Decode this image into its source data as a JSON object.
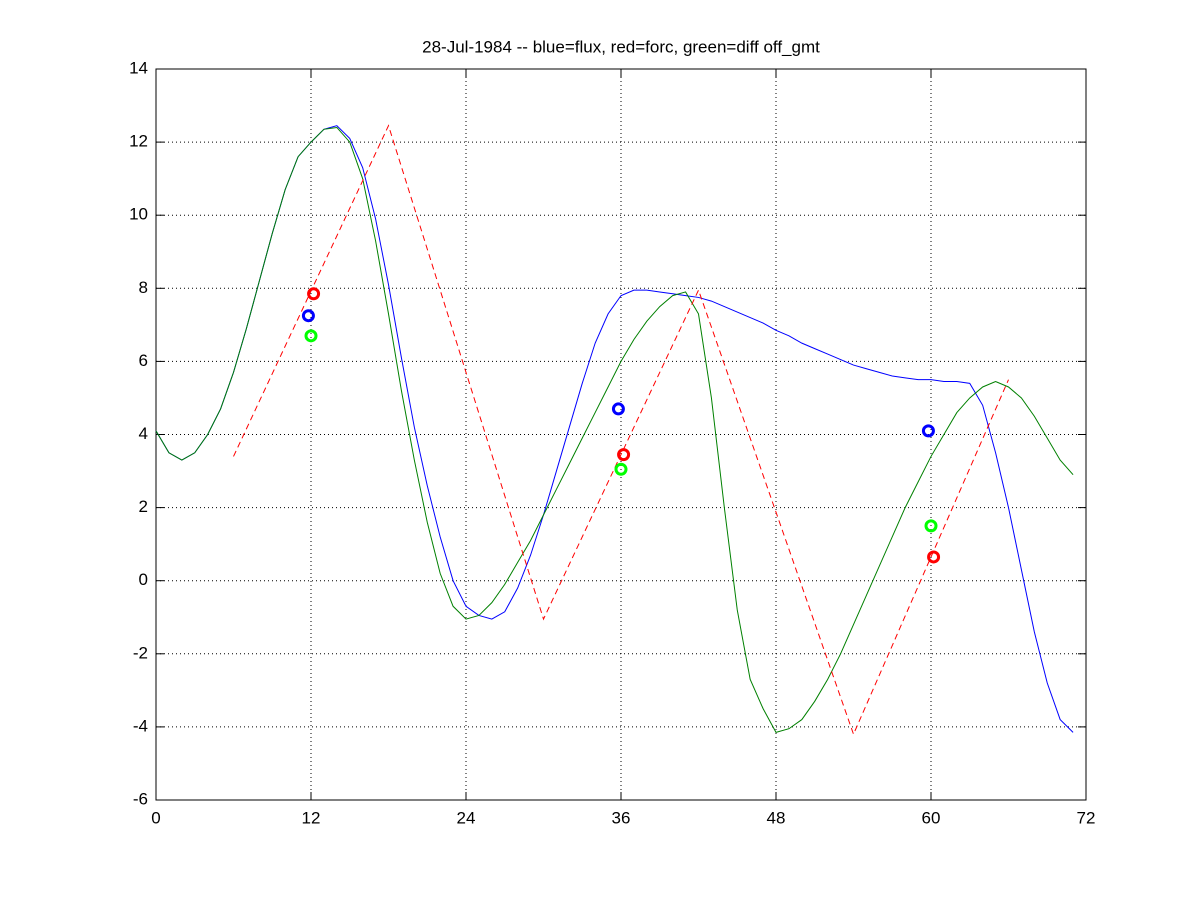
{
  "chart_data": {
    "type": "line",
    "title": "28-Jul-1984 -- blue=flux, red=forc, green=diff off_gmt",
    "x": [
      0,
      1,
      2,
      3,
      4,
      5,
      6,
      7,
      8,
      9,
      10,
      11,
      12,
      13,
      14,
      15,
      16,
      17,
      18,
      19,
      20,
      21,
      22,
      23,
      24,
      25,
      26,
      27,
      28,
      29,
      30,
      31,
      32,
      33,
      34,
      35,
      36,
      37,
      38,
      39,
      40,
      41,
      42,
      43,
      44,
      45,
      46,
      47,
      48,
      49,
      50,
      51,
      52,
      53,
      54,
      55,
      56,
      57,
      58,
      59,
      60,
      61,
      62,
      63,
      64,
      65,
      66,
      67,
      68,
      69,
      70,
      71
    ],
    "series": [
      {
        "color": "#0000ff",
        "style": "solid",
        "values": [
          4.1,
          3.5,
          3.3,
          3.5,
          4.0,
          4.7,
          5.7,
          6.9,
          8.2,
          9.5,
          10.7,
          11.6,
          12.0,
          12.35,
          12.45,
          12.1,
          11.3,
          9.9,
          8.1,
          6.1,
          4.2,
          2.6,
          1.2,
          0.0,
          -0.7,
          -0.95,
          -1.05,
          -0.85,
          -0.2,
          0.7,
          1.8,
          3.0,
          4.2,
          5.4,
          6.5,
          7.3,
          7.8,
          7.95,
          7.95,
          7.9,
          7.85,
          7.8,
          7.75,
          7.65,
          7.5,
          7.35,
          7.2,
          7.05,
          6.85,
          6.7,
          6.5,
          6.35,
          6.2,
          6.05,
          5.9,
          5.8,
          5.7,
          5.6,
          5.55,
          5.5,
          5.5,
          5.45,
          5.45,
          5.4,
          4.8,
          3.5,
          2.0,
          0.3,
          -1.4,
          -2.8,
          -3.8,
          -4.15
        ]
      },
      {
        "color": "#008000",
        "style": "solid",
        "values": [
          4.1,
          3.5,
          3.3,
          3.5,
          4.0,
          4.7,
          5.7,
          6.9,
          8.2,
          9.5,
          10.7,
          11.6,
          12.0,
          12.35,
          12.4,
          12.0,
          11.0,
          9.3,
          7.3,
          5.2,
          3.3,
          1.6,
          0.2,
          -0.7,
          -1.05,
          -0.95,
          -0.6,
          -0.1,
          0.5,
          1.1,
          1.8,
          2.5,
          3.2,
          3.9,
          4.6,
          5.3,
          6.0,
          6.6,
          7.1,
          7.5,
          7.8,
          7.9,
          7.3,
          5.0,
          2.0,
          -0.8,
          -2.7,
          -3.5,
          -4.15,
          -4.05,
          -3.8,
          -3.3,
          -2.7,
          -2.0,
          -1.2,
          -0.4,
          0.4,
          1.2,
          2.0,
          2.7,
          3.4,
          4.0,
          4.6,
          5.0,
          5.3,
          5.45,
          5.3,
          5.0,
          4.5,
          3.9,
          3.3,
          2.9
        ]
      },
      {
        "color": "#ff0000",
        "style": "dashed",
        "x": [
          6,
          18,
          30,
          42,
          54,
          66
        ],
        "values": [
          3.4,
          12.45,
          -1.05,
          7.95,
          -4.2,
          5.5
        ]
      },
      {
        "color": "#0000ff",
        "style": "marker",
        "x": [
          11.8,
          35.8,
          59.8
        ],
        "values": [
          7.25,
          4.7,
          4.1
        ]
      },
      {
        "color": "#ff0000",
        "style": "marker",
        "x": [
          12.2,
          36.2,
          60.2
        ],
        "values": [
          7.85,
          3.45,
          0.65
        ]
      },
      {
        "color": "#00ff00",
        "style": "marker",
        "x": [
          12,
          36,
          60
        ],
        "values": [
          6.7,
          3.05,
          1.5
        ]
      }
    ],
    "xlim": [
      0,
      72
    ],
    "xticks": [
      0,
      12,
      24,
      36,
      48,
      60,
      72
    ],
    "ylim": [
      -6,
      14
    ],
    "yticks": [
      -6,
      -4,
      -2,
      0,
      2,
      4,
      6,
      8,
      10,
      12,
      14
    ],
    "grid": true
  }
}
